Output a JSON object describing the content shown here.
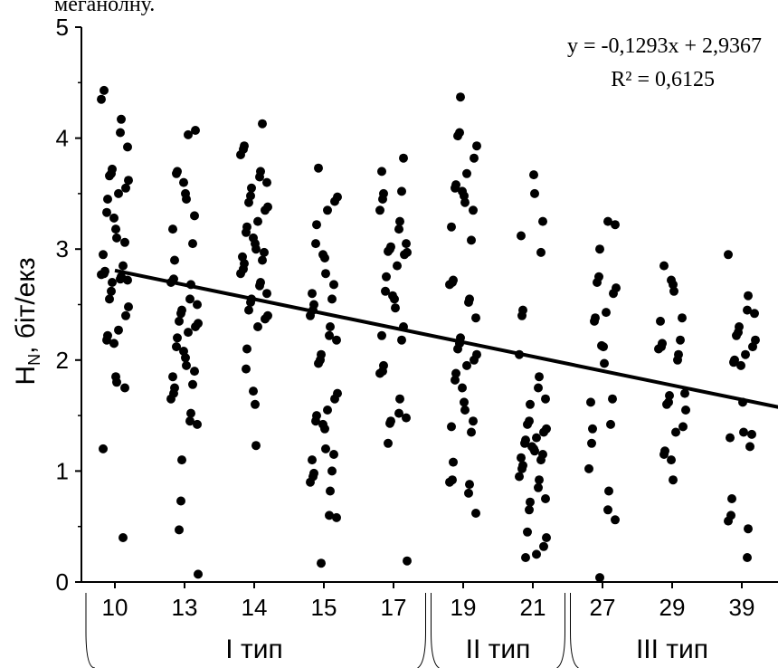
{
  "top_text": "меганолну.",
  "chart_data": {
    "type": "scatter",
    "ylabel_main": "H",
    "ylabel_sub": "N",
    "ylabel_rest": ", біт/екз",
    "xlabel": "",
    "ylim": [
      0,
      5
    ],
    "yticks": [
      "0",
      "1",
      "2",
      "3",
      "4",
      "5"
    ],
    "categories": [
      "10",
      "13",
      "14",
      "15",
      "17",
      "19",
      "21",
      "27",
      "29",
      "39"
    ],
    "groups": [
      {
        "label": "І тип",
        "categories": [
          "10",
          "13",
          "14",
          "15",
          "17"
        ]
      },
      {
        "label": "ІІ тип",
        "categories": [
          "19",
          "21"
        ]
      },
      {
        "label": "ІІІ тип",
        "categories": [
          "27",
          "29",
          "39"
        ]
      }
    ],
    "trendline": {
      "equation": "y = -0,1293x + 2,9367",
      "r_squared": "R² = 0,6125",
      "slope": -0.1293,
      "intercept": 2.9367,
      "x_from": 0.5,
      "x_to": 10.0
    },
    "series": [
      {
        "category": "10",
        "values": [
          4.43,
          4.35,
          4.17,
          4.05,
          3.92,
          3.72,
          3.68,
          3.66,
          3.62,
          3.55,
          3.5,
          3.45,
          3.33,
          3.28,
          3.18,
          3.1,
          3.06,
          2.95,
          2.85,
          2.8,
          2.78,
          2.77,
          2.75,
          2.73,
          2.72,
          2.7,
          2.62,
          2.55,
          2.48,
          2.4,
          2.27,
          2.22,
          2.18,
          2.15,
          1.85,
          1.8,
          1.75,
          1.2,
          0.4
        ]
      },
      {
        "category": "13",
        "values": [
          4.07,
          4.03,
          3.7,
          3.68,
          3.6,
          3.5,
          3.45,
          3.3,
          3.18,
          3.05,
          2.9,
          2.73,
          2.7,
          2.68,
          2.55,
          2.5,
          2.45,
          2.42,
          2.35,
          2.33,
          2.3,
          2.25,
          2.2,
          2.12,
          2.08,
          2.02,
          1.95,
          1.9,
          1.85,
          1.78,
          1.75,
          1.7,
          1.65,
          1.52,
          1.45,
          1.42,
          1.1,
          0.73,
          0.47,
          0.07
        ]
      },
      {
        "category": "14",
        "values": [
          4.13,
          3.93,
          3.9,
          3.85,
          3.7,
          3.65,
          3.6,
          3.55,
          3.48,
          3.42,
          3.38,
          3.35,
          3.25,
          3.2,
          3.15,
          3.1,
          3.05,
          3.0,
          2.97,
          2.93,
          2.9,
          2.87,
          2.82,
          2.78,
          2.7,
          2.67,
          2.6,
          2.55,
          2.52,
          2.45,
          2.4,
          2.37,
          2.3,
          2.1,
          1.92,
          1.72,
          1.6,
          1.23
        ]
      },
      {
        "category": "15",
        "values": [
          3.73,
          3.47,
          3.43,
          3.35,
          3.22,
          3.05,
          2.95,
          2.92,
          2.78,
          2.68,
          2.6,
          2.55,
          2.5,
          2.45,
          2.4,
          2.3,
          2.22,
          2.18,
          2.05,
          2.0,
          1.97,
          1.7,
          1.65,
          1.55,
          1.5,
          1.45,
          1.42,
          1.38,
          1.2,
          1.15,
          1.1,
          1.0,
          0.98,
          0.95,
          0.9,
          0.82,
          0.6,
          0.58,
          0.17
        ]
      },
      {
        "category": "17",
        "values": [
          3.82,
          3.7,
          3.52,
          3.5,
          3.45,
          3.35,
          3.25,
          3.18,
          3.05,
          3.02,
          3.0,
          2.98,
          2.97,
          2.95,
          2.85,
          2.75,
          2.62,
          2.58,
          2.55,
          2.47,
          2.3,
          2.22,
          2.18,
          1.95,
          1.9,
          1.88,
          1.65,
          1.52,
          1.48,
          1.45,
          1.43,
          1.25,
          0.19
        ]
      },
      {
        "category": "19",
        "values": [
          4.37,
          4.05,
          4.02,
          3.93,
          3.82,
          3.68,
          3.58,
          3.55,
          3.52,
          3.48,
          3.42,
          3.35,
          3.2,
          3.08,
          2.72,
          2.7,
          2.68,
          2.55,
          2.52,
          2.38,
          2.2,
          2.15,
          2.1,
          2.05,
          2.0,
          1.95,
          1.88,
          1.82,
          1.75,
          1.62,
          1.55,
          1.45,
          1.4,
          1.35,
          1.08,
          0.92,
          0.9,
          0.88,
          0.8,
          0.62
        ]
      },
      {
        "category": "21",
        "values": [
          3.67,
          3.5,
          3.25,
          3.12,
          2.97,
          2.45,
          2.4,
          2.05,
          1.85,
          1.75,
          1.65,
          1.6,
          1.45,
          1.42,
          1.38,
          1.35,
          1.3,
          1.28,
          1.25,
          1.22,
          1.2,
          1.18,
          1.15,
          1.12,
          1.1,
          1.05,
          1.02,
          0.95,
          0.92,
          0.85,
          0.75,
          0.72,
          0.65,
          0.45,
          0.4,
          0.32,
          0.25,
          0.22
        ]
      },
      {
        "category": "27",
        "values": [
          3.25,
          3.22,
          3.0,
          2.75,
          2.7,
          2.65,
          2.6,
          2.43,
          2.38,
          2.35,
          2.13,
          2.12,
          1.97,
          1.65,
          1.62,
          1.42,
          1.38,
          1.25,
          1.02,
          0.82,
          0.65,
          0.56,
          0.04
        ]
      },
      {
        "category": "29",
        "values": [
          2.85,
          2.72,
          2.68,
          2.62,
          2.38,
          2.35,
          2.18,
          2.15,
          2.12,
          2.1,
          2.05,
          2.0,
          1.7,
          1.68,
          1.62,
          1.6,
          1.55,
          1.4,
          1.35,
          1.18,
          1.15,
          1.1,
          0.92
        ]
      },
      {
        "category": "39",
        "values": [
          2.95,
          2.58,
          2.45,
          2.42,
          2.3,
          2.25,
          2.22,
          2.18,
          2.12,
          2.05,
          2.0,
          1.98,
          1.95,
          1.62,
          1.35,
          1.33,
          1.3,
          1.22,
          0.75,
          0.6,
          0.55,
          0.48,
          0.22
        ]
      }
    ]
  }
}
